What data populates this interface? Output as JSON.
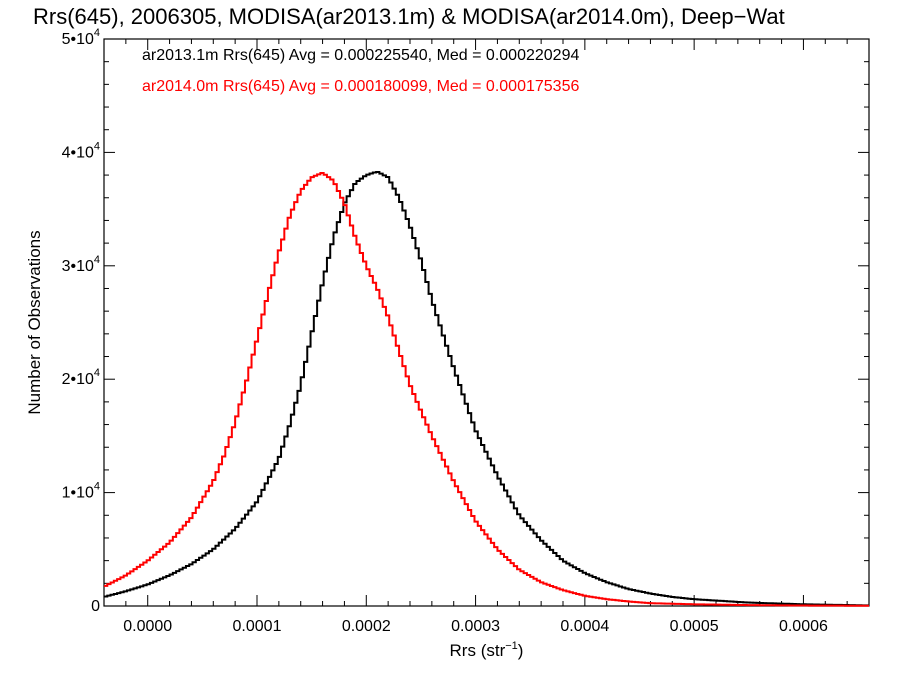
{
  "chart_data": {
    "type": "line",
    "title": "Rrs(645), 2006305, MODISA(ar2013.1m) & MODISA(ar2014.0m), Deep−Wat",
    "xlabel": {
      "base": "Rrs (str",
      "sup": "−1",
      "close": ")"
    },
    "ylabel": "Number of Observations",
    "xlim": [
      -4e-05,
      0.00066
    ],
    "ylim": [
      0,
      50000
    ],
    "x_ticks": [
      {
        "value": 0.0,
        "label": "0.0000"
      },
      {
        "value": 0.0001,
        "label": "0.0001"
      },
      {
        "value": 0.0002,
        "label": "0.0002"
      },
      {
        "value": 0.0003,
        "label": "0.0003"
      },
      {
        "value": 0.0004,
        "label": "0.0004"
      },
      {
        "value": 0.0005,
        "label": "0.0005"
      },
      {
        "value": 0.0006,
        "label": "0.0006"
      }
    ],
    "y_ticks": [
      {
        "value": 0,
        "mant": "0",
        "exp": ""
      },
      {
        "value": 10000,
        "mant": "1•10",
        "exp": "4"
      },
      {
        "value": 20000,
        "mant": "2•10",
        "exp": "4"
      },
      {
        "value": 30000,
        "mant": "3•10",
        "exp": "4"
      },
      {
        "value": 40000,
        "mant": "4•10",
        "exp": "4"
      },
      {
        "value": 50000,
        "mant": "5•10",
        "exp": "4"
      }
    ],
    "legend_position": "top-left",
    "series": [
      {
        "name": "ar2013.1m Rrs(645) Avg = 0.000225540, Med = 0.000220294",
        "color": "#000000",
        "x": [
          -4e-05,
          -2e-05,
          0.0,
          2e-05,
          4e-05,
          6e-05,
          8e-05,
          0.0001,
          0.00012,
          0.00013,
          0.00014,
          0.00015,
          0.00016,
          0.00017,
          0.00018,
          0.00019,
          0.0002,
          0.00021,
          0.00022,
          0.00023,
          0.00024,
          0.00025,
          0.00026,
          0.00027,
          0.00028,
          0.0003,
          0.00032,
          0.00034,
          0.00036,
          0.00038,
          0.0004,
          0.00042,
          0.00044,
          0.00046,
          0.00048,
          0.0005,
          0.00055,
          0.0006,
          0.00066
        ],
        "y": [
          800,
          1300,
          1900,
          2700,
          3700,
          5000,
          6800,
          9200,
          13000,
          16000,
          19500,
          24000,
          28500,
          32500,
          35500,
          37300,
          38000,
          38300,
          37800,
          36000,
          33500,
          30500,
          27000,
          24000,
          21000,
          15500,
          11500,
          8000,
          5800,
          4000,
          2900,
          2100,
          1500,
          1100,
          800,
          600,
          300,
          150,
          50
        ]
      },
      {
        "name": "ar2014.0m Rrs(645) Avg = 0.000180099, Med = 0.000175356",
        "color": "#ff0000",
        "x": [
          -4e-05,
          -2e-05,
          0.0,
          2e-05,
          4e-05,
          6e-05,
          7e-05,
          8e-05,
          9e-05,
          0.0001,
          0.00011,
          0.00012,
          0.00013,
          0.00014,
          0.00015,
          0.00016,
          0.00017,
          0.00018,
          0.00019,
          0.0002,
          0.00021,
          0.00022,
          0.00023,
          0.00024,
          0.00025,
          0.00026,
          0.00028,
          0.0003,
          0.00032,
          0.00034,
          0.00036,
          0.00038,
          0.0004,
          0.00042,
          0.00044,
          0.00046,
          0.0005,
          0.00055,
          0.0006,
          0.00066
        ],
        "y": [
          1700,
          2700,
          4000,
          5600,
          7800,
          11000,
          13300,
          16200,
          19700,
          23500,
          27500,
          31200,
          34400,
          36600,
          37800,
          38200,
          37500,
          35500,
          32500,
          30000,
          28000,
          25500,
          22500,
          19500,
          17200,
          15000,
          11000,
          7500,
          5000,
          3200,
          2100,
          1400,
          900,
          600,
          400,
          250,
          150,
          80,
          40,
          20
        ]
      }
    ]
  }
}
